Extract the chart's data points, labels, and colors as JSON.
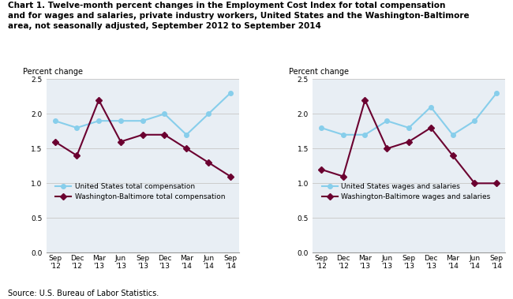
{
  "title": "Chart 1. Twelve-month percent changes in the Employment Cost Index for total compensation\nand for wages and salaries, private industry workers, United States and the Washington-Baltimore\narea, not seasonally adjusted, September 2012 to September 2014",
  "source": "Source: U.S. Bureau of Labor Statistics.",
  "x_labels": [
    "Sep\n'12",
    "Dec\n'12",
    "Mar\n'13",
    "Jun\n'13",
    "Sep\n'13",
    "Dec\n'13",
    "Mar\n'14",
    "Jun\n'14",
    "Sep\n'14"
  ],
  "left_chart": {
    "ylabel": "Percent change",
    "us_label": "United States total compensation",
    "wb_label": "Washington-Baltimore total compensation",
    "us_values": [
      1.9,
      1.8,
      1.9,
      1.9,
      1.9,
      2.0,
      1.7,
      2.0,
      2.3
    ],
    "wb_values": [
      1.6,
      1.4,
      2.2,
      1.6,
      1.7,
      1.7,
      1.5,
      1.3,
      1.1
    ],
    "ylim": [
      0.0,
      2.5
    ],
    "yticks": [
      0.0,
      0.5,
      1.0,
      1.5,
      2.0,
      2.5
    ]
  },
  "right_chart": {
    "ylabel": "Percent change",
    "us_label": "United States wages and salaries",
    "wb_label": "Washington-Baltimore wages and salaries",
    "us_values": [
      1.8,
      1.7,
      1.7,
      1.9,
      1.8,
      2.1,
      1.7,
      1.9,
      2.3
    ],
    "wb_values": [
      1.2,
      1.1,
      2.2,
      1.5,
      1.6,
      1.8,
      1.4,
      1.0,
      1.0
    ],
    "ylim": [
      0.0,
      2.5
    ],
    "yticks": [
      0.0,
      0.5,
      1.0,
      1.5,
      2.0,
      2.5
    ]
  },
  "us_color": "#87CEEB",
  "wb_color": "#6B0030",
  "us_marker": "o",
  "wb_marker": "D",
  "marker_size": 4,
  "line_width": 1.5,
  "grid_color": "#cccccc",
  "bg_color": "#e8eef4",
  "plot_bg_color": "#ffffff",
  "title_fontsize": 7.5,
  "source_fontsize": 7.0,
  "tick_fontsize": 6.5,
  "ylabel_fontsize": 7.0,
  "legend_fontsize": 6.5
}
